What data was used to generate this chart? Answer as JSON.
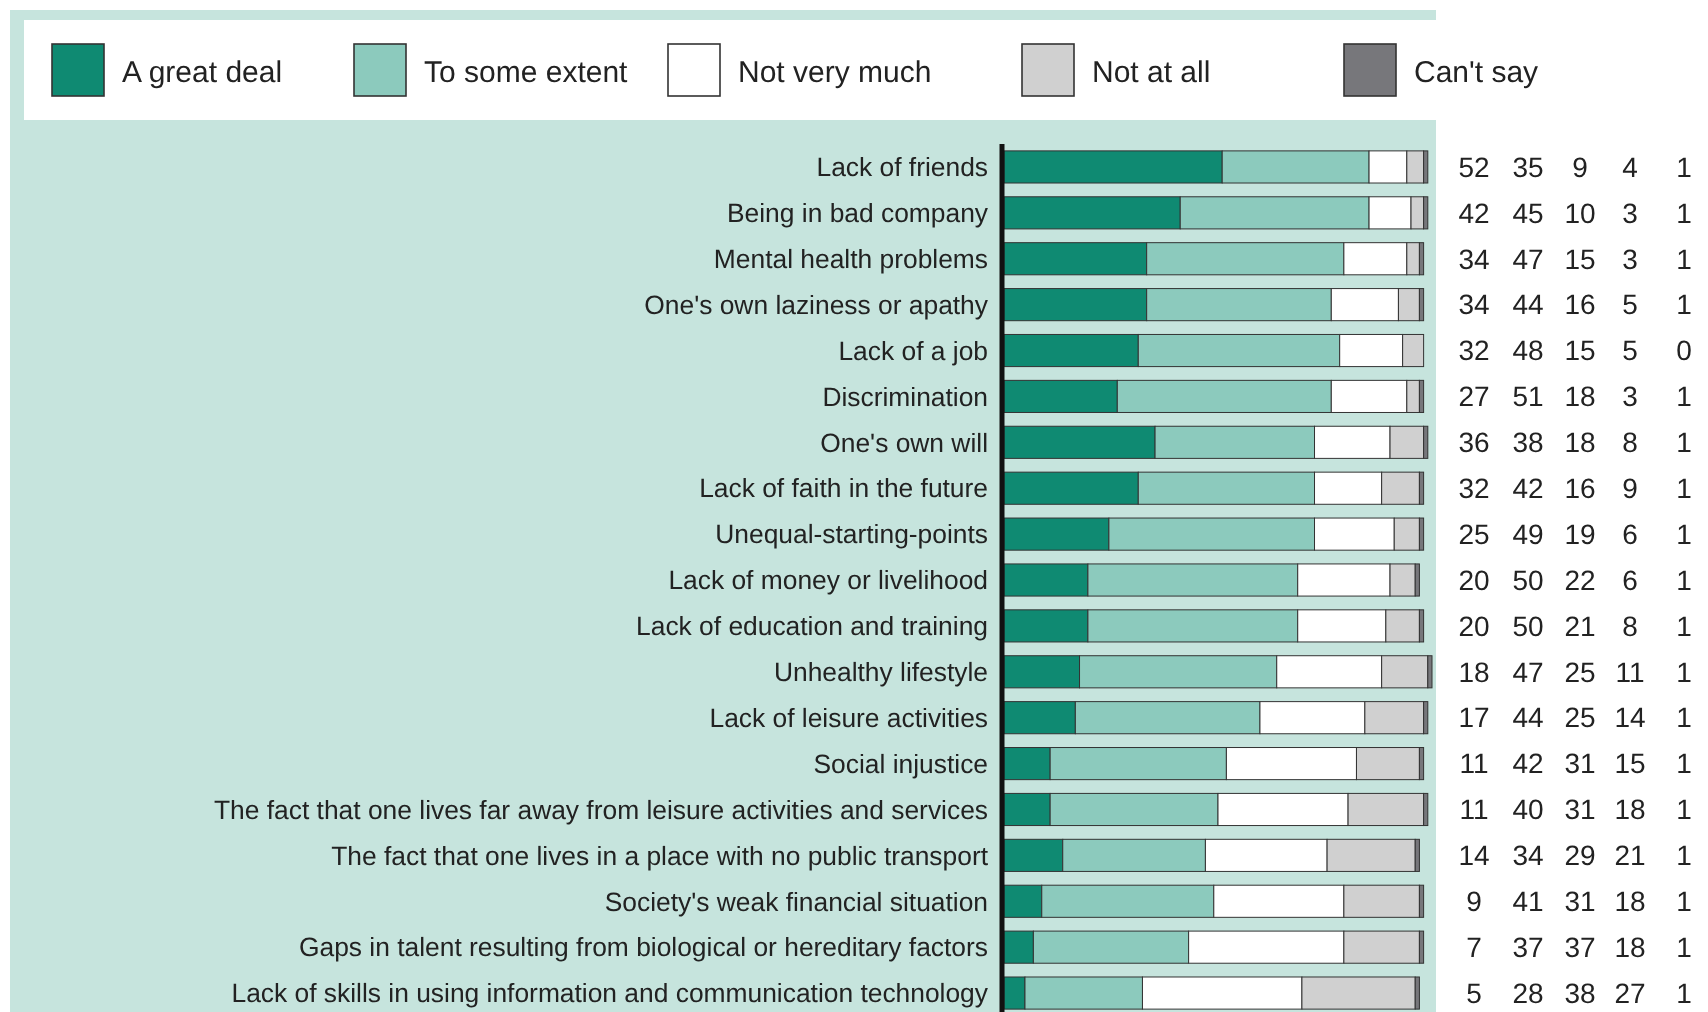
{
  "chart_data": {
    "type": "bar",
    "orientation": "horizontal",
    "stacked": true,
    "legend": "top",
    "data_labels": true,
    "categories": [
      "Lack of friends",
      "Being in bad company",
      "Mental health problems",
      "One's own laziness or apathy",
      "Lack of a job",
      "Discrimination",
      "One's own will",
      "Lack of faith in the future",
      "Unequal-starting-points",
      "Lack of money or livelihood",
      "Lack of education and training",
      "Unhealthy lifestyle",
      "Lack of leisure activities",
      "Social injustice",
      "The fact that one lives far away from leisure activities and services",
      "The fact that one lives in a place with no public transport",
      "Society's weak financial situation",
      "Gaps in talent resulting from biological or hereditary factors",
      "Lack of skills in using information and communication technology"
    ],
    "series": [
      {
        "name": "A great deal",
        "color": "#0f8a72",
        "values": [
          52,
          42,
          34,
          34,
          32,
          27,
          36,
          32,
          25,
          20,
          20,
          18,
          17,
          11,
          11,
          14,
          9,
          7,
          5
        ]
      },
      {
        "name": "To some extent",
        "color": "#8ccabd",
        "values": [
          35,
          45,
          47,
          44,
          48,
          51,
          38,
          42,
          49,
          50,
          50,
          47,
          44,
          42,
          40,
          34,
          41,
          37,
          28
        ]
      },
      {
        "name": "Not very much",
        "color": "#ffffff",
        "values": [
          9,
          10,
          15,
          16,
          15,
          18,
          18,
          16,
          19,
          22,
          21,
          25,
          25,
          31,
          31,
          29,
          31,
          37,
          38
        ]
      },
      {
        "name": "Not at all",
        "color": "#d0d0d0",
        "values": [
          4,
          3,
          3,
          5,
          5,
          3,
          8,
          9,
          6,
          6,
          8,
          11,
          14,
          15,
          18,
          21,
          18,
          18,
          27
        ]
      },
      {
        "name": "Can't say",
        "color": "#77777b",
        "values": [
          1,
          1,
          1,
          1,
          0,
          1,
          1,
          1,
          1,
          1,
          1,
          1,
          1,
          1,
          1,
          1,
          1,
          1,
          1
        ]
      }
    ]
  }
}
